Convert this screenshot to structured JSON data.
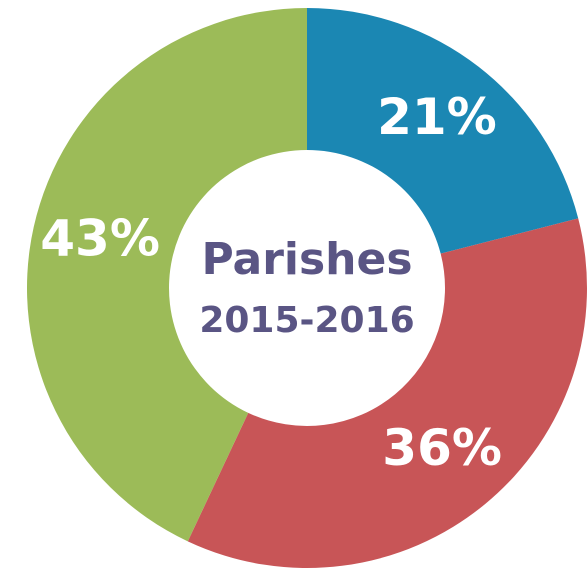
{
  "chart_data": {
    "type": "donut",
    "title": "Parishes",
    "subtitle": "2015-2016",
    "values": [
      21,
      36,
      43
    ],
    "value_labels": [
      "21%",
      "36%",
      "43%"
    ],
    "colors": [
      "#1b87b3",
      "#c85557",
      "#9cbb58"
    ]
  }
}
